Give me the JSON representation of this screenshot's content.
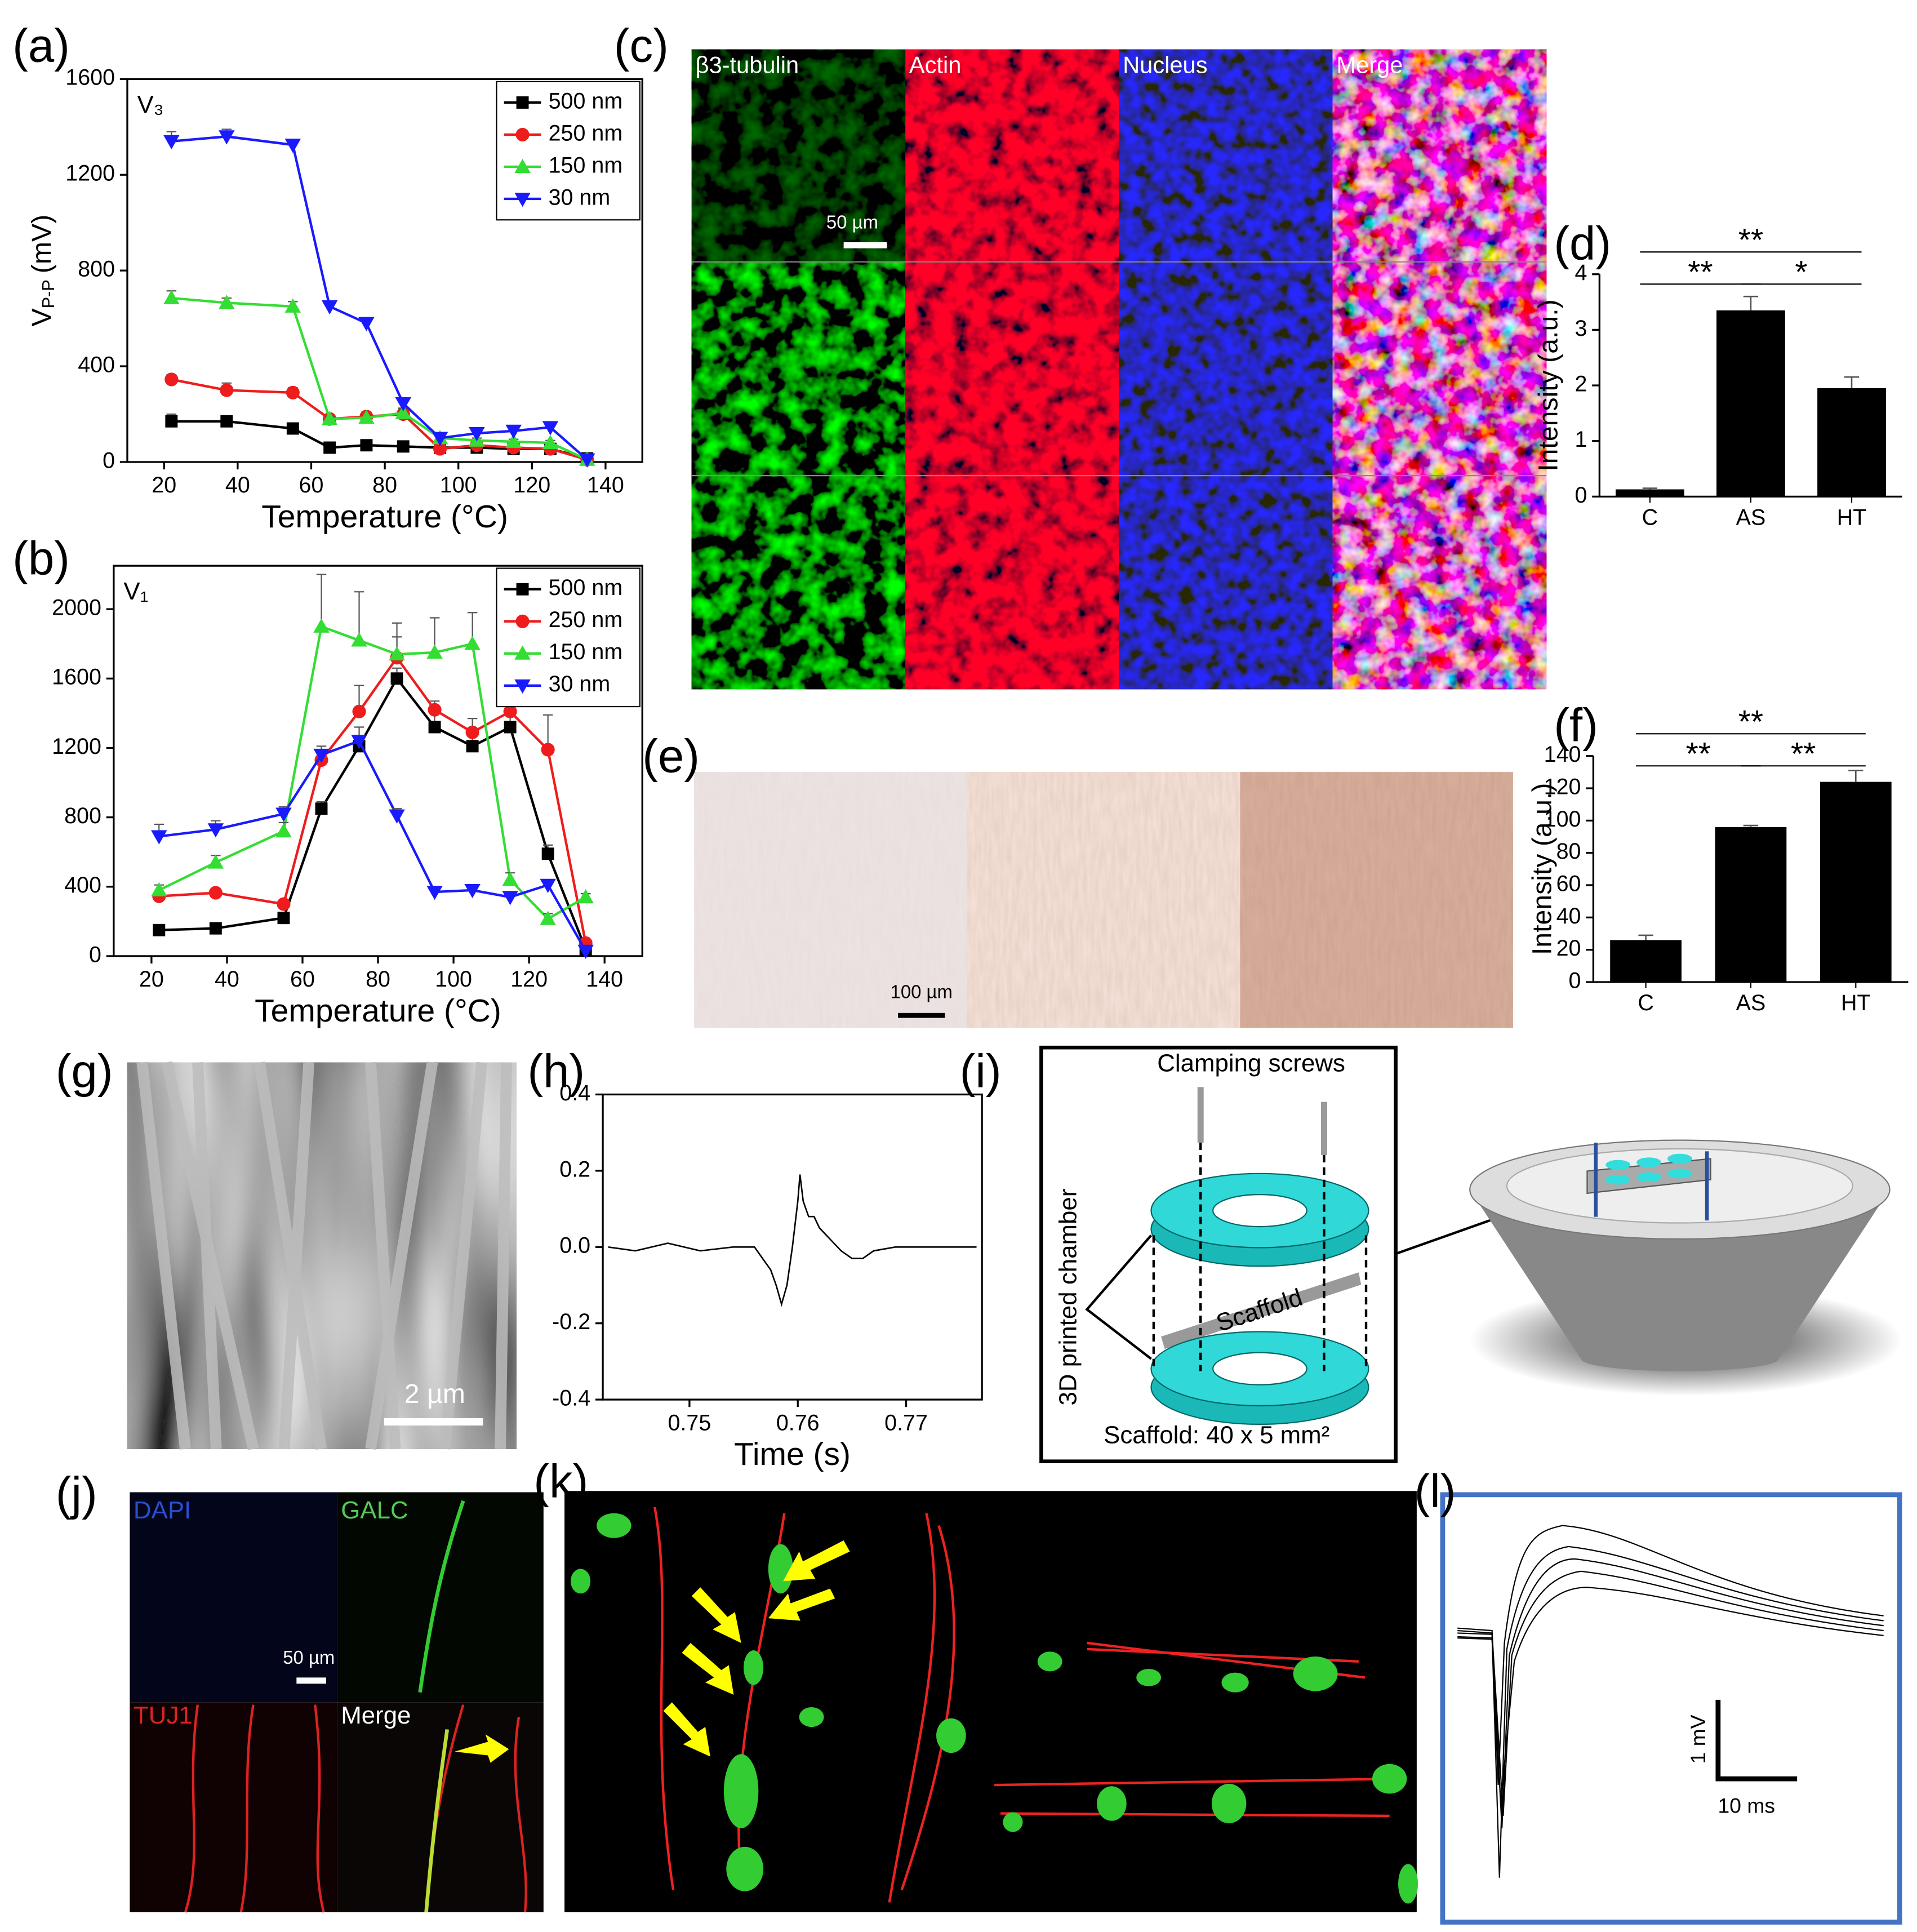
{
  "chart_data": [
    {
      "type": "line",
      "annotation": "V₃",
      "xlabel": "Temperature (°C)",
      "ylabel": [
        "V",
        "P-P",
        "(mV)"
      ],
      "x": [
        22,
        37,
        55,
        65,
        75,
        85,
        95,
        105,
        115,
        125,
        135
      ],
      "xlim": [
        10,
        150
      ],
      "xticks": [
        20,
        40,
        60,
        80,
        100,
        120,
        140
      ],
      "ylim": [
        0,
        1600
      ],
      "yticks": [
        0,
        400,
        800,
        1200,
        1600
      ],
      "grid": false,
      "frame": true,
      "legend": "upper right",
      "series": [
        {
          "name": "500 nm",
          "color": "#000000",
          "marker": "square",
          "values": [
            170,
            170,
            140,
            60,
            70,
            65,
            60,
            60,
            55,
            55,
            15
          ],
          "errors": [
            30,
            20,
            10,
            10,
            10,
            10,
            10,
            10,
            10,
            10,
            5
          ]
        },
        {
          "name": "250 nm",
          "color": "#ee1c1c",
          "marker": "circle",
          "values": [
            345,
            300,
            290,
            180,
            190,
            200,
            55,
            70,
            60,
            55,
            10
          ],
          "errors": [
            20,
            30,
            20,
            10,
            20,
            20,
            10,
            10,
            10,
            10,
            5
          ]
        },
        {
          "name": "150 nm",
          "color": "#33dd33",
          "marker": "triangle-up",
          "values": [
            685,
            665,
            650,
            180,
            185,
            205,
            100,
            90,
            85,
            80,
            10
          ],
          "errors": [
            30,
            20,
            20,
            10,
            10,
            20,
            10,
            10,
            10,
            10,
            5
          ]
        },
        {
          "name": "30 nm",
          "color": "#1a1aff",
          "marker": "triangle-down",
          "values": [
            1340,
            1360,
            1325,
            650,
            580,
            245,
            100,
            120,
            130,
            145,
            10
          ],
          "errors": [
            40,
            30,
            20,
            10,
            20,
            20,
            10,
            10,
            10,
            10,
            5
          ]
        }
      ]
    },
    {
      "type": "line",
      "annotation": "V₁",
      "xlabel": "Temperature (°C)",
      "x": [
        22,
        37,
        55,
        65,
        75,
        85,
        95,
        105,
        115,
        125,
        135
      ],
      "xlim": [
        10,
        150
      ],
      "xticks": [
        20,
        40,
        60,
        80,
        100,
        120,
        140
      ],
      "ylim": [
        0,
        2250
      ],
      "yticks": [
        0,
        400,
        800,
        1200,
        1600,
        2000
      ],
      "grid": false,
      "frame": true,
      "legend": "upper right",
      "series": [
        {
          "name": "500 nm",
          "color": "#000000",
          "marker": "square",
          "values": [
            150,
            160,
            220,
            850,
            1210,
            1600,
            1320,
            1210,
            1320,
            590,
            40
          ],
          "errors": [
            20,
            20,
            30,
            40,
            60,
            60,
            80,
            80,
            70,
            50,
            20
          ]
        },
        {
          "name": "250 nm",
          "color": "#ee1c1c",
          "marker": "circle",
          "values": [
            345,
            365,
            300,
            1130,
            1410,
            1720,
            1420,
            1290,
            1410,
            1190,
            75
          ],
          "errors": [
            20,
            20,
            20,
            50,
            150,
            200,
            50,
            80,
            50,
            200,
            20
          ]
        },
        {
          "name": "150 nm",
          "color": "#33dd33",
          "marker": "triangle-up",
          "values": [
            380,
            540,
            720,
            1900,
            1820,
            1740,
            1750,
            1800,
            440,
            215,
            340
          ],
          "errors": [
            30,
            40,
            50,
            300,
            280,
            100,
            200,
            180,
            40,
            30,
            20
          ]
        },
        {
          "name": "30 nm",
          "color": "#1a1aff",
          "marker": "triangle-down",
          "values": [
            690,
            730,
            820,
            1160,
            1240,
            810,
            370,
            380,
            340,
            410,
            30
          ],
          "errors": [
            70,
            50,
            40,
            50,
            80,
            40,
            20,
            20,
            20,
            30,
            10
          ]
        }
      ]
    },
    {
      "type": "bar",
      "ylabel": "Intensity (a.u.)",
      "categories": [
        "C",
        "AS",
        "HT"
      ],
      "values": [
        0.13,
        3.35,
        1.95
      ],
      "errors": [
        0.02,
        0.25,
        0.2
      ],
      "color": "#000000",
      "ylim": [
        0,
        4
      ],
      "yticks": [
        0,
        1,
        2,
        3,
        4
      ],
      "grid": false,
      "brackets": [
        {
          "between": [
            "C",
            "HT"
          ],
          "label": "**"
        },
        {
          "between": [
            "C",
            "AS"
          ],
          "label": "**"
        },
        {
          "between": [
            "AS",
            "HT"
          ],
          "label": "*"
        }
      ]
    },
    {
      "type": "bar",
      "ylabel": "Intensity (a.u.)",
      "categories": [
        "C",
        "AS",
        "HT"
      ],
      "values": [
        26,
        96,
        124
      ],
      "errors": [
        3,
        1,
        7
      ],
      "color": "#000000",
      "ylim": [
        0,
        140
      ],
      "yticks": [
        0,
        20,
        40,
        60,
        80,
        100,
        120,
        140
      ],
      "grid": false,
      "brackets": [
        {
          "between": [
            "C",
            "HT"
          ],
          "label": "**"
        },
        {
          "between": [
            "C",
            "AS"
          ],
          "label": "**"
        },
        {
          "between": [
            "AS",
            "HT"
          ],
          "label": "**"
        }
      ]
    },
    {
      "type": "line",
      "xlabel": "Time (s)",
      "frame": true,
      "grid": false,
      "color": "#000000",
      "x": [
        0.7425,
        0.745,
        0.748,
        0.751,
        0.754,
        0.756,
        0.7565,
        0.757,
        0.7575,
        0.758,
        0.7585,
        0.759,
        0.7595,
        0.76,
        0.7602,
        0.7605,
        0.761,
        0.7615,
        0.762,
        0.763,
        0.764,
        0.765,
        0.766,
        0.767,
        0.769,
        0.772,
        0.7765
      ],
      "values": [
        0.0,
        -0.01,
        0.01,
        -0.01,
        0.0,
        0.0,
        -0.02,
        -0.04,
        -0.06,
        -0.1,
        -0.15,
        -0.1,
        0.0,
        0.12,
        0.19,
        0.12,
        0.08,
        0.08,
        0.05,
        0.02,
        -0.01,
        -0.03,
        -0.03,
        -0.01,
        0.0,
        0.0,
        0.0
      ],
      "xlim": [
        0.742,
        0.777
      ],
      "xticks": [
        0.75,
        0.76,
        0.77
      ],
      "ylim": [
        -0.4,
        0.4
      ],
      "yticks": [
        -0.4,
        -0.2,
        {
          "value": 0,
          "label": "0.0"
        },
        0.2,
        0.4
      ]
    }
  ],
  "figure": {
    "panel_labels": [
      "(a)",
      "(b)",
      "(c)",
      "(d)",
      "(e)",
      "(f)",
      "(g)",
      "(h)",
      "(i)",
      "(j)",
      "(k)",
      "(l)"
    ],
    "c_labels": [
      "β3-tubulin",
      "Actin",
      "Nucleus",
      "Merge"
    ],
    "c_scale": "50 µm",
    "e_scale": "100 µm",
    "g_scale": "2 µm",
    "i_labels": {
      "screws": "Clamping screws",
      "chamber": "3D printed chamber",
      "scaffold": "Scaffold",
      "size": "Scaffold: 40 x 5 mm²"
    },
    "j_labels": [
      "DAPI",
      "GALC",
      "TUJ1",
      "Merge"
    ],
    "j_scale": "50 µm",
    "l_scale": {
      "y": "1 mV",
      "x": "10 ms"
    }
  }
}
